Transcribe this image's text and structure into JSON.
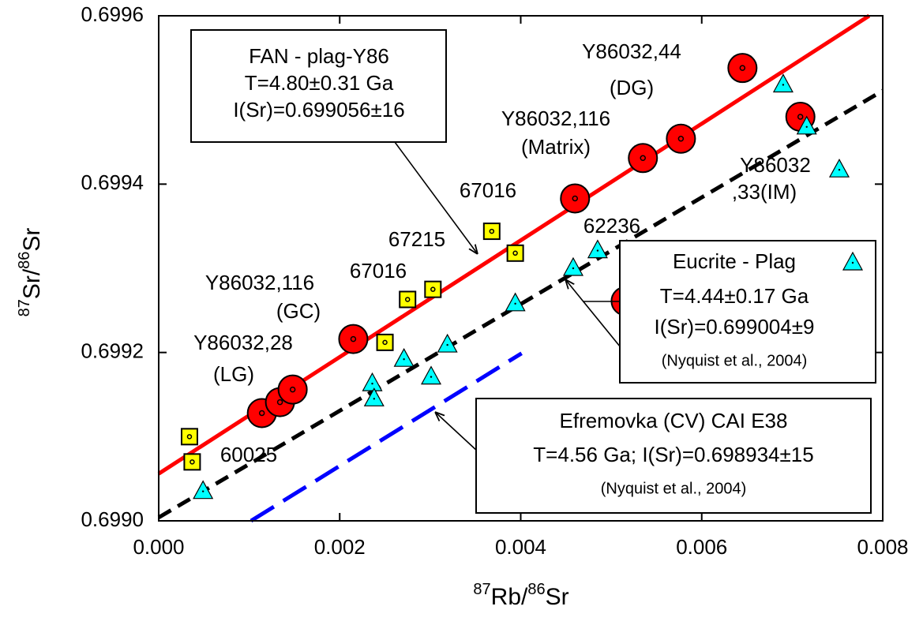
{
  "chart_data": {
    "type": "scatter",
    "xlabel": [
      "87",
      "Rb/",
      "86",
      "Sr"
    ],
    "ylabel": [
      "87",
      "Sr/",
      "86",
      "Sr"
    ],
    "xlim": [
      0,
      0.008
    ],
    "ylim": [
      0.699,
      0.6996
    ],
    "xticks": [
      {
        "value": 0,
        "label": "0.000"
      },
      {
        "value": 0.002,
        "label": "0.002"
      },
      {
        "value": 0.004,
        "label": "0.004"
      },
      {
        "value": 0.006,
        "label": "0.006"
      },
      {
        "value": 0.008,
        "label": "0.008"
      }
    ],
    "yticks": [
      {
        "value": 0.699,
        "label": "0.6990"
      },
      {
        "value": 0.6992,
        "label": "0.6992"
      },
      {
        "value": 0.6994,
        "label": "0.6994"
      },
      {
        "value": 0.6996,
        "label": "0.6996"
      }
    ],
    "fits": [
      {
        "color": "#ff0000",
        "dash": "none",
        "x": [
          0,
          0.00785
        ],
        "values": [
          0.699056,
          0.6996
        ]
      },
      {
        "color": "#000000",
        "dash": "18 10",
        "x": [
          0,
          0.008
        ],
        "values": [
          0.699004,
          0.699511
        ]
      },
      {
        "color": "#0000ff",
        "dash": "34 14",
        "x": [
          0.00102,
          0.00401
        ],
        "values": [
          0.699,
          0.699199
        ]
      }
    ],
    "series": [
      {
        "marker": "circle",
        "color": "#ff0000",
        "x": [
          0.00114,
          0.00134,
          0.00148,
          0.00215,
          0.0046,
          0.00535,
          0.00577,
          0.00645,
          0.00709,
          0.00516
        ],
        "values": [
          0.699128,
          0.699141,
          0.699156,
          0.699216,
          0.699383,
          0.699431,
          0.699454,
          0.699538,
          0.69948,
          0.699261
        ]
      },
      {
        "marker": "square",
        "color": "#ffff00",
        "x": [
          0.00034,
          0.00037,
          0.0025,
          0.00275,
          0.00303,
          0.00368,
          0.00394
        ],
        "values": [
          0.6991,
          0.69907,
          0.699212,
          0.699263,
          0.699275,
          0.699344,
          0.699318
        ]
      },
      {
        "marker": "triangle",
        "color": "#00ffff",
        "x": [
          0.00049,
          0.00236,
          0.00238,
          0.00271,
          0.00301,
          0.00319,
          0.00394,
          0.00458,
          0.00485,
          0.0069,
          0.00716,
          0.00752
        ],
        "values": [
          0.699035,
          0.699163,
          0.699145,
          0.699192,
          0.699171,
          0.699209,
          0.699258,
          0.6993,
          0.699321,
          0.699518,
          0.699468,
          0.699417
        ]
      }
    ],
    "annotations": [
      "Y86032,44",
      "(DG)",
      "Y86032,116",
      "(Matrix)",
      "Y86032",
      ",33(IM)",
      "67016",
      "62236",
      "67215",
      "Y86032,116",
      "67016",
      "(GC)",
      "Y86032,28",
      "(LG)",
      "60025"
    ],
    "boxes": [
      {
        "lines": [
          "FAN - plag-Y86",
          "T=4.80±0.31 Ga",
          "I(Sr)=0.699056±16"
        ]
      },
      {
        "lines": [
          "Eucrite - Plag",
          "T=4.44±0.17 Ga",
          "I(Sr)=0.699004±9",
          "(Nyquist et al., 2004)"
        ]
      },
      {
        "lines": [
          "Efremovka (CV) CAI E38",
          "T=4.56 Ga; I(Sr)=0.698934±15",
          "(Nyquist et al., 2004)"
        ]
      }
    ]
  }
}
